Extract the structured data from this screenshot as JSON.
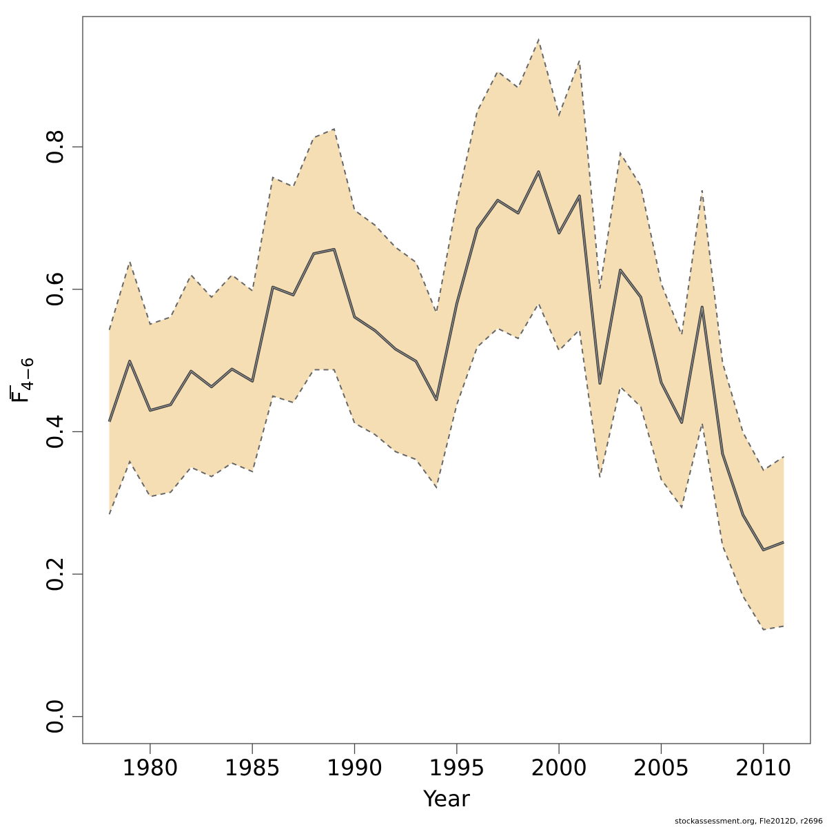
{
  "chart_data": {
    "type": "line",
    "xlabel": "Year",
    "ylabel_main": "F",
    "ylabel_sub": "4−6",
    "x_ticks": [
      1980,
      1985,
      1990,
      1995,
      2000,
      2005,
      2010
    ],
    "y_ticks": [
      "0.0",
      "0.2",
      "0.4",
      "0.6",
      "0.8"
    ],
    "xlim": [
      1976.7,
      2012.3
    ],
    "ylim": [
      -0.038,
      0.983
    ],
    "grid": false,
    "colors": {
      "band": "#f5deb3",
      "line": "#444444",
      "bound": "#666666"
    },
    "x": [
      1978,
      1979,
      1980,
      1981,
      1982,
      1983,
      1984,
      1985,
      1986,
      1987,
      1988,
      1989,
      1990,
      1991,
      1992,
      1993,
      1994,
      1995,
      1996,
      1997,
      1998,
      1999,
      2000,
      2001,
      2002,
      2003,
      2004,
      2005,
      2006,
      2007,
      2008,
      2009,
      2010,
      2011
    ],
    "series": [
      {
        "role": "estimate",
        "values": [
          0.414,
          0.499,
          0.43,
          0.438,
          0.485,
          0.463,
          0.488,
          0.471,
          0.603,
          0.592,
          0.65,
          0.656,
          0.561,
          0.542,
          0.516,
          0.499,
          0.445,
          0.58,
          0.685,
          0.725,
          0.707,
          0.765,
          0.679,
          0.731,
          0.468,
          0.627,
          0.589,
          0.469,
          0.413,
          0.575,
          0.369,
          0.283,
          0.234,
          0.245
        ]
      },
      {
        "role": "upper",
        "values": [
          0.543,
          0.639,
          0.551,
          0.561,
          0.62,
          0.589,
          0.62,
          0.598,
          0.757,
          0.744,
          0.813,
          0.825,
          0.711,
          0.69,
          0.659,
          0.638,
          0.567,
          0.722,
          0.85,
          0.906,
          0.883,
          0.95,
          0.845,
          0.921,
          0.601,
          0.791,
          0.745,
          0.608,
          0.536,
          0.739,
          0.497,
          0.399,
          0.346,
          0.365
        ]
      },
      {
        "role": "lower",
        "values": [
          0.284,
          0.358,
          0.309,
          0.315,
          0.35,
          0.337,
          0.356,
          0.344,
          0.45,
          0.441,
          0.487,
          0.487,
          0.412,
          0.396,
          0.372,
          0.361,
          0.322,
          0.438,
          0.519,
          0.545,
          0.531,
          0.58,
          0.514,
          0.543,
          0.336,
          0.463,
          0.435,
          0.333,
          0.294,
          0.412,
          0.24,
          0.169,
          0.122,
          0.127
        ]
      }
    ]
  },
  "footer": "stockassessment.org, Fle2012D, r2696"
}
